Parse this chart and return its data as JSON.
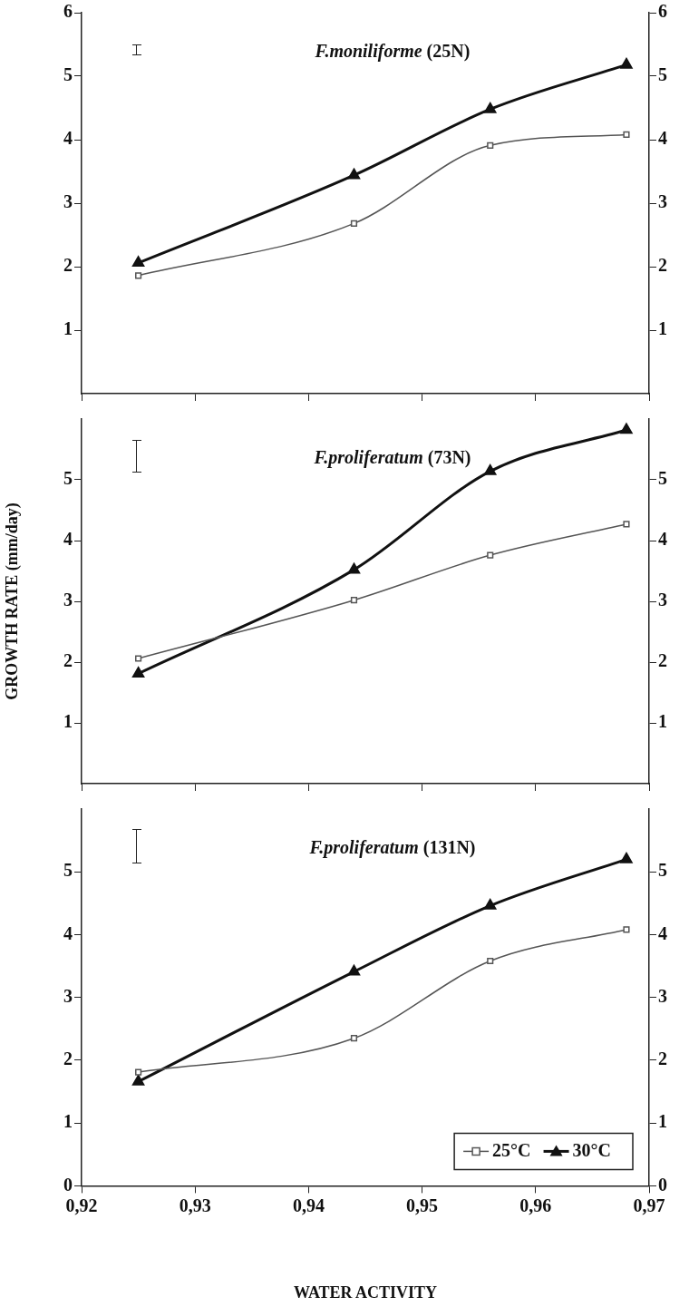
{
  "chart_data": [
    {
      "type": "line",
      "title": "F.moniliforme (25N)",
      "x": [
        0.925,
        0.944,
        0.956,
        0.968
      ],
      "xlim": [
        0.92,
        0.97
      ],
      "xticks": [
        {
          "value": 0.92,
          "label": null
        },
        {
          "value": 0.93,
          "label": null
        },
        {
          "value": 0.94,
          "label": null
        },
        {
          "value": 0.95,
          "label": null
        },
        {
          "value": 0.96,
          "label": null
        },
        {
          "value": 0.97,
          "label": null
        }
      ],
      "ylim": [
        0,
        6
      ],
      "yticks": [
        1,
        2,
        3,
        4,
        5,
        6
      ],
      "y2lim": [
        0,
        6
      ],
      "y2ticks": [
        1,
        2,
        3,
        4,
        5,
        6
      ],
      "tick_labels": "y",
      "grid": false,
      "series": [
        {
          "color": "#555555",
          "marker": "square",
          "values": [
            1.86,
            2.68,
            3.91,
            4.08
          ]
        },
        {
          "color": "#111111",
          "marker": "triangle",
          "values": [
            2.06,
            3.44,
            4.48,
            5.18
          ]
        }
      ]
    },
    {
      "type": "line",
      "title": "F.proliferatum (73N)",
      "ylabel": "GROWTH RATE (mm/day)",
      "x": [
        0.925,
        0.944,
        0.956,
        0.968
      ],
      "xlim": [
        0.92,
        0.97
      ],
      "xticks": [
        {
          "value": 0.92,
          "label": null
        },
        {
          "value": 0.93,
          "label": null
        },
        {
          "value": 0.94,
          "label": null
        },
        {
          "value": 0.95,
          "label": null
        },
        {
          "value": 0.96,
          "label": null
        },
        {
          "value": 0.97,
          "label": null
        }
      ],
      "ylim": [
        0,
        6
      ],
      "yticks": [
        1,
        2,
        3,
        4,
        5
      ],
      "y2lim": [
        0,
        6
      ],
      "y2ticks": [
        1,
        2,
        3,
        4,
        5
      ],
      "tick_labels": "y",
      "grid": false,
      "series": [
        {
          "color": "#555555",
          "marker": "square",
          "values": [
            2.06,
            3.02,
            3.76,
            4.27
          ]
        },
        {
          "color": "#111111",
          "marker": "triangle",
          "values": [
            1.81,
            3.52,
            5.14,
            5.82
          ]
        }
      ]
    },
    {
      "type": "line",
      "title": "F.proliferatum (131N)",
      "xlabel": "WATER ACTIVITY",
      "x": [
        0.925,
        0.944,
        0.956,
        0.968
      ],
      "xlim": [
        0.92,
        0.97
      ],
      "xticks": [
        {
          "value": 0.92,
          "label": "0,92"
        },
        {
          "value": 0.93,
          "label": "0,93"
        },
        {
          "value": 0.94,
          "label": "0,94"
        },
        {
          "value": 0.95,
          "label": "0,95"
        },
        {
          "value": 0.96,
          "label": "0,96"
        },
        {
          "value": 0.97,
          "label": "0,97"
        }
      ],
      "ylim": [
        0,
        6
      ],
      "yticks": [
        0,
        1,
        2,
        3,
        4,
        5
      ],
      "y2lim": [
        0,
        6
      ],
      "y2ticks": [
        0,
        1,
        2,
        3,
        4,
        5
      ],
      "grid": false,
      "legend": "bottom right",
      "series": [
        {
          "name": "25°C",
          "color": "#555555",
          "marker": "square",
          "values": [
            1.81,
            2.35,
            3.58,
            4.08
          ]
        },
        {
          "name": "30°C",
          "color": "#111111",
          "marker": "triangle",
          "values": [
            1.66,
            3.41,
            4.46,
            5.2
          ]
        }
      ]
    }
  ]
}
